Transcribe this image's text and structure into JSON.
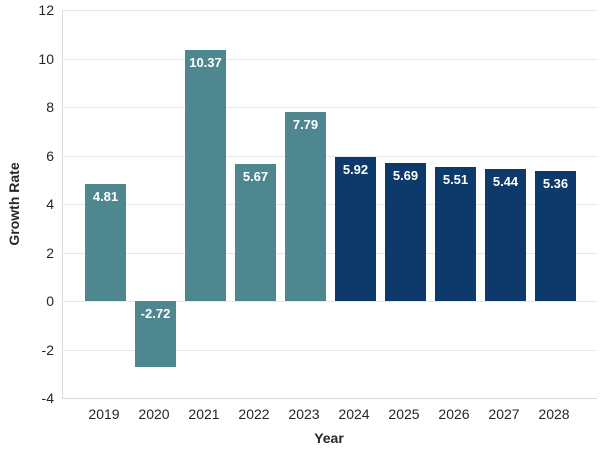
{
  "chart_data": {
    "type": "bar",
    "title": "",
    "xlabel": "Year",
    "ylabel": "Growth Rate",
    "categories": [
      "2019",
      "2020",
      "2021",
      "2022",
      "2023",
      "2024",
      "2025",
      "2026",
      "2027",
      "2028"
    ],
    "values": [
      4.81,
      -2.72,
      10.37,
      5.67,
      7.79,
      5.92,
      5.69,
      5.51,
      5.44,
      5.36
    ],
    "value_labels": [
      "4.81",
      "-2.72",
      "10.37",
      "5.67",
      "7.79",
      "5.92",
      "5.69",
      "5.51",
      "5.44",
      "5.36"
    ],
    "bar_groups": [
      "historical",
      "historical",
      "historical",
      "historical",
      "historical",
      "forecast",
      "forecast",
      "forecast",
      "forecast",
      "forecast"
    ],
    "palette": {
      "historical": "#4f8790",
      "forecast": "#0d3a6b"
    },
    "ylim": [
      -4,
      12
    ],
    "yticks": [
      -4,
      -2,
      0,
      2,
      4,
      6,
      8,
      10,
      12
    ],
    "ytick_labels": [
      "-4",
      "-2",
      "0",
      "2",
      "4",
      "6",
      "8",
      "10",
      "12"
    ],
    "grid": "horizontal",
    "legend": "none",
    "colors": {
      "grid": "#e7e7e7",
      "axis_line": "#d9d9d9",
      "tick_text": "#262626",
      "axis_title_text": "#262626",
      "value_label_text": "#ffffff",
      "background": "#ffffff"
    }
  }
}
